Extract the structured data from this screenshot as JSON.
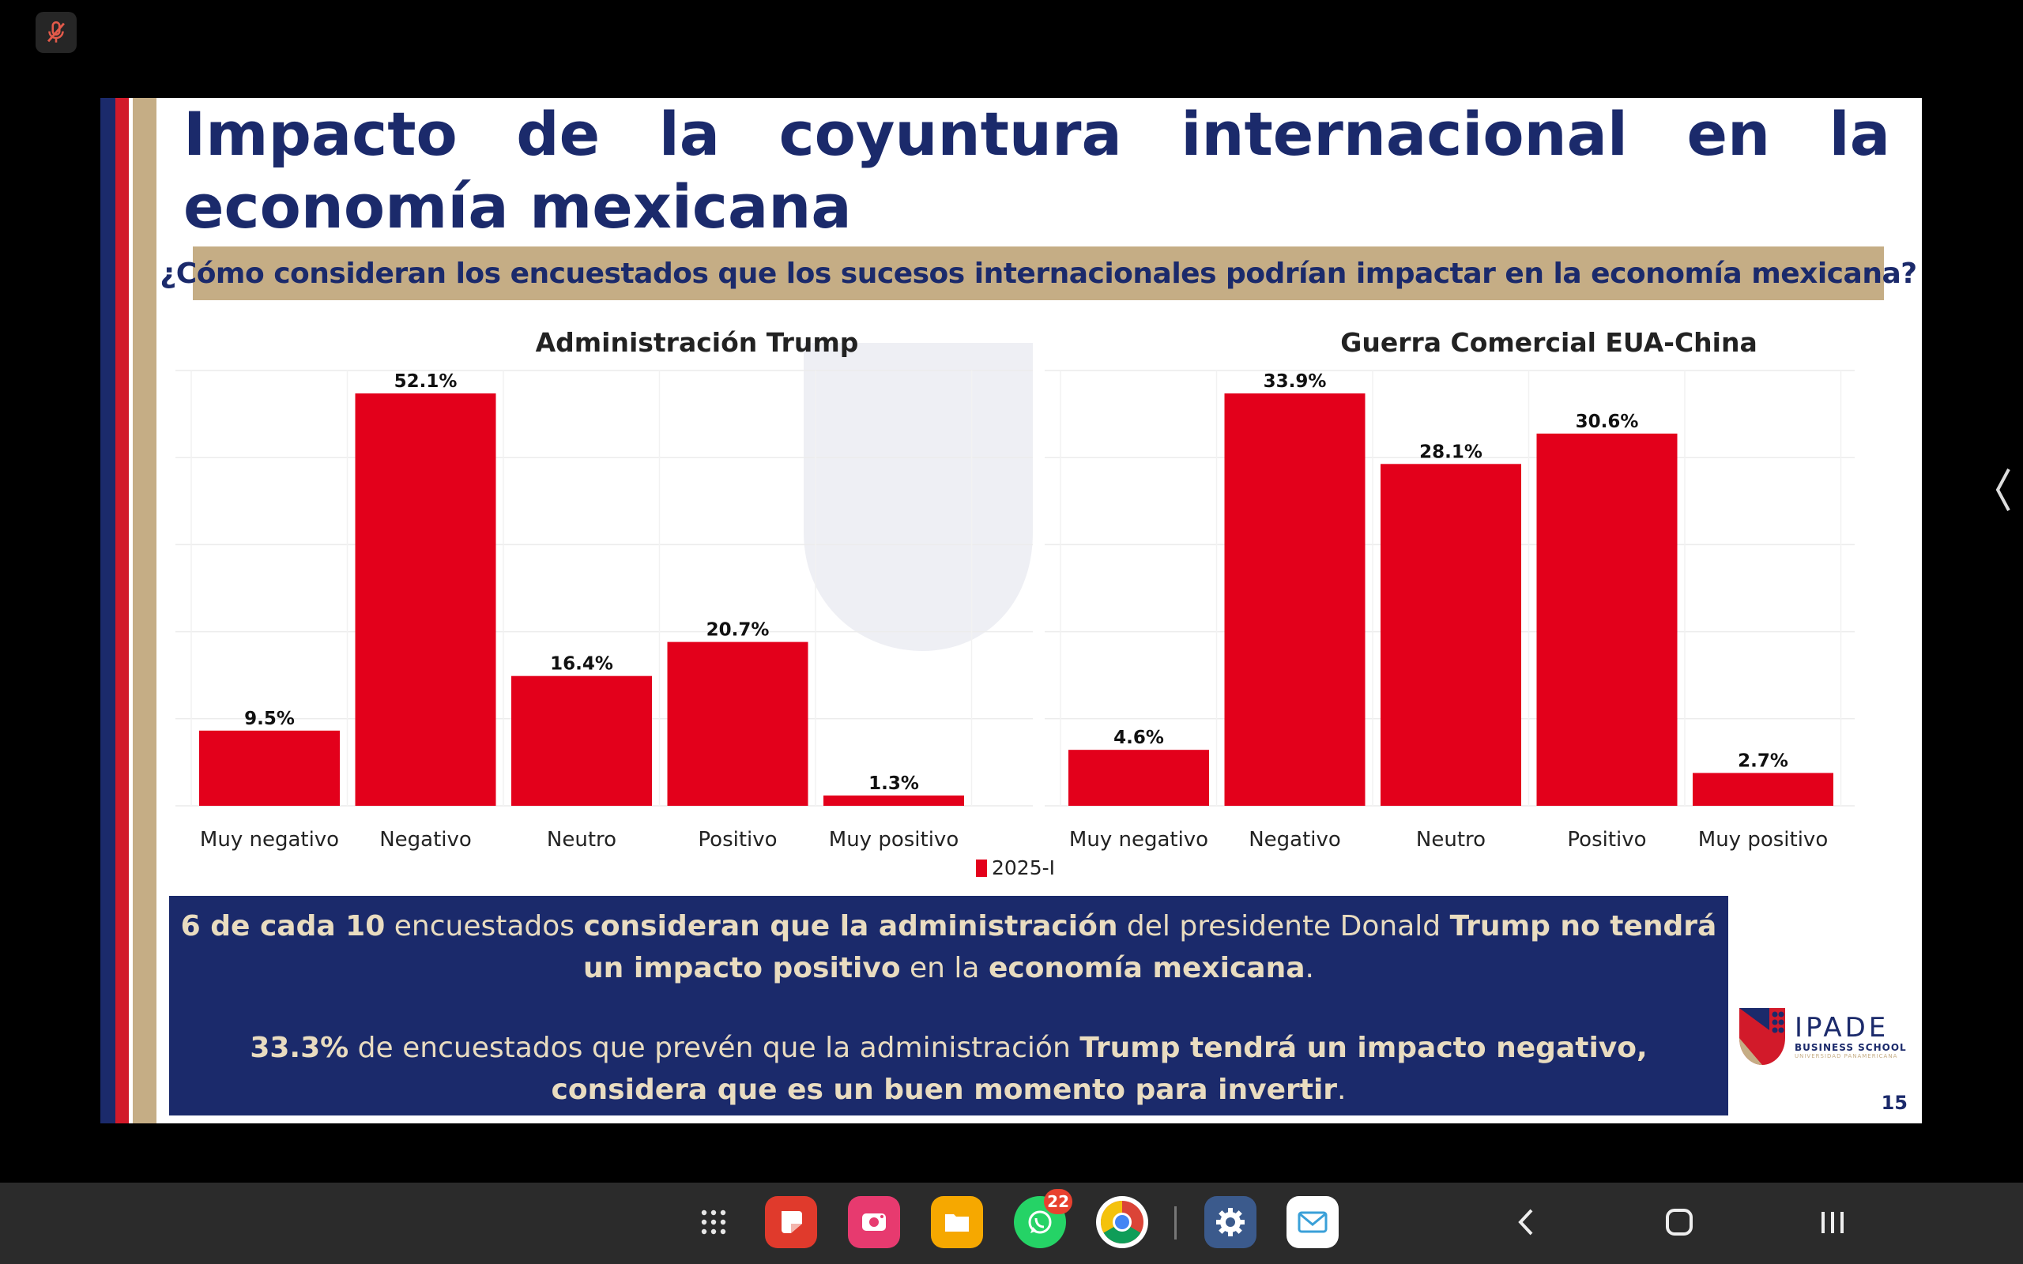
{
  "slide": {
    "title": "Impacto de la coyuntura internacional en la economía mexicana",
    "question": "¿Cómo consideran los encuestados que los sucesos internacionales podrían impactar en la economía mexicana?",
    "legend_label": "2025-I",
    "page_number": "15",
    "logo": {
      "name": "IPADE",
      "subtitle": "BUSINESS SCHOOL",
      "subtitle2": "UNIVERSIDAD PANAMERICANA"
    },
    "summary": {
      "p1": [
        {
          "t": "6 de cada 10",
          "b": true
        },
        {
          "t": " encuestados ",
          "b": false
        },
        {
          "t": "consideran que la administración",
          "b": true
        },
        {
          "t": " del presidente Donald ",
          "b": false
        },
        {
          "t": "Trump no tendrá un impacto positivo",
          "b": true
        },
        {
          "t": " en la ",
          "b": false
        },
        {
          "t": "economía mexicana",
          "b": true
        },
        {
          "t": ".",
          "b": false
        }
      ],
      "p2": [
        {
          "t": "33.3%",
          "b": true
        },
        {
          "t": " de encuestados que prevén que la administración ",
          "b": false
        },
        {
          "t": "Trump tendrá un impacto negativo, considera que es un buen momento para invertir",
          "b": true
        },
        {
          "t": ".",
          "b": false
        }
      ]
    }
  },
  "chart_data": [
    {
      "type": "bar",
      "title": "Administración Trump",
      "categories": [
        "Muy negativo",
        "Negativo",
        "Neutro",
        "Positivo",
        "Muy positivo"
      ],
      "series": [
        {
          "name": "2025-I",
          "values": [
            9.5,
            52.1,
            16.4,
            20.7,
            1.3
          ]
        }
      ],
      "data_labels": [
        "9.5%",
        "52.1%",
        "16.4%",
        "20.7%",
        "1.3%"
      ],
      "ylim": [
        0,
        52.1
      ],
      "color": "#e3001b",
      "grid": true,
      "legend": "bottom"
    },
    {
      "type": "bar",
      "title": "Guerra Comercial EUA-China",
      "categories": [
        "Muy negativo",
        "Negativo",
        "Neutro",
        "Positivo",
        "Muy positivo"
      ],
      "series": [
        {
          "name": "2025-I",
          "values": [
            4.6,
            33.9,
            28.1,
            30.6,
            2.7
          ]
        }
      ],
      "data_labels": [
        "4.6%",
        "33.9%",
        "28.1%",
        "30.6%",
        "2.7%"
      ],
      "ylim": [
        0,
        33.9
      ],
      "color": "#e3001b",
      "grid": true,
      "legend": "bottom"
    }
  ],
  "dock": {
    "apps": [
      {
        "name": "apps-grid-icon"
      },
      {
        "name": "notes-app-icon",
        "color": "#e03a2c"
      },
      {
        "name": "screen-recorder-icon",
        "color": "#e73a6f"
      },
      {
        "name": "files-app-icon",
        "color": "#f6a800"
      },
      {
        "name": "whatsapp-icon",
        "color": "#25d366",
        "badge": "22"
      },
      {
        "name": "chrome-icon"
      },
      {
        "name": "settings-icon",
        "color": "#3b5a8c"
      },
      {
        "name": "mail-app-icon",
        "color": "#ffffff"
      }
    ]
  }
}
